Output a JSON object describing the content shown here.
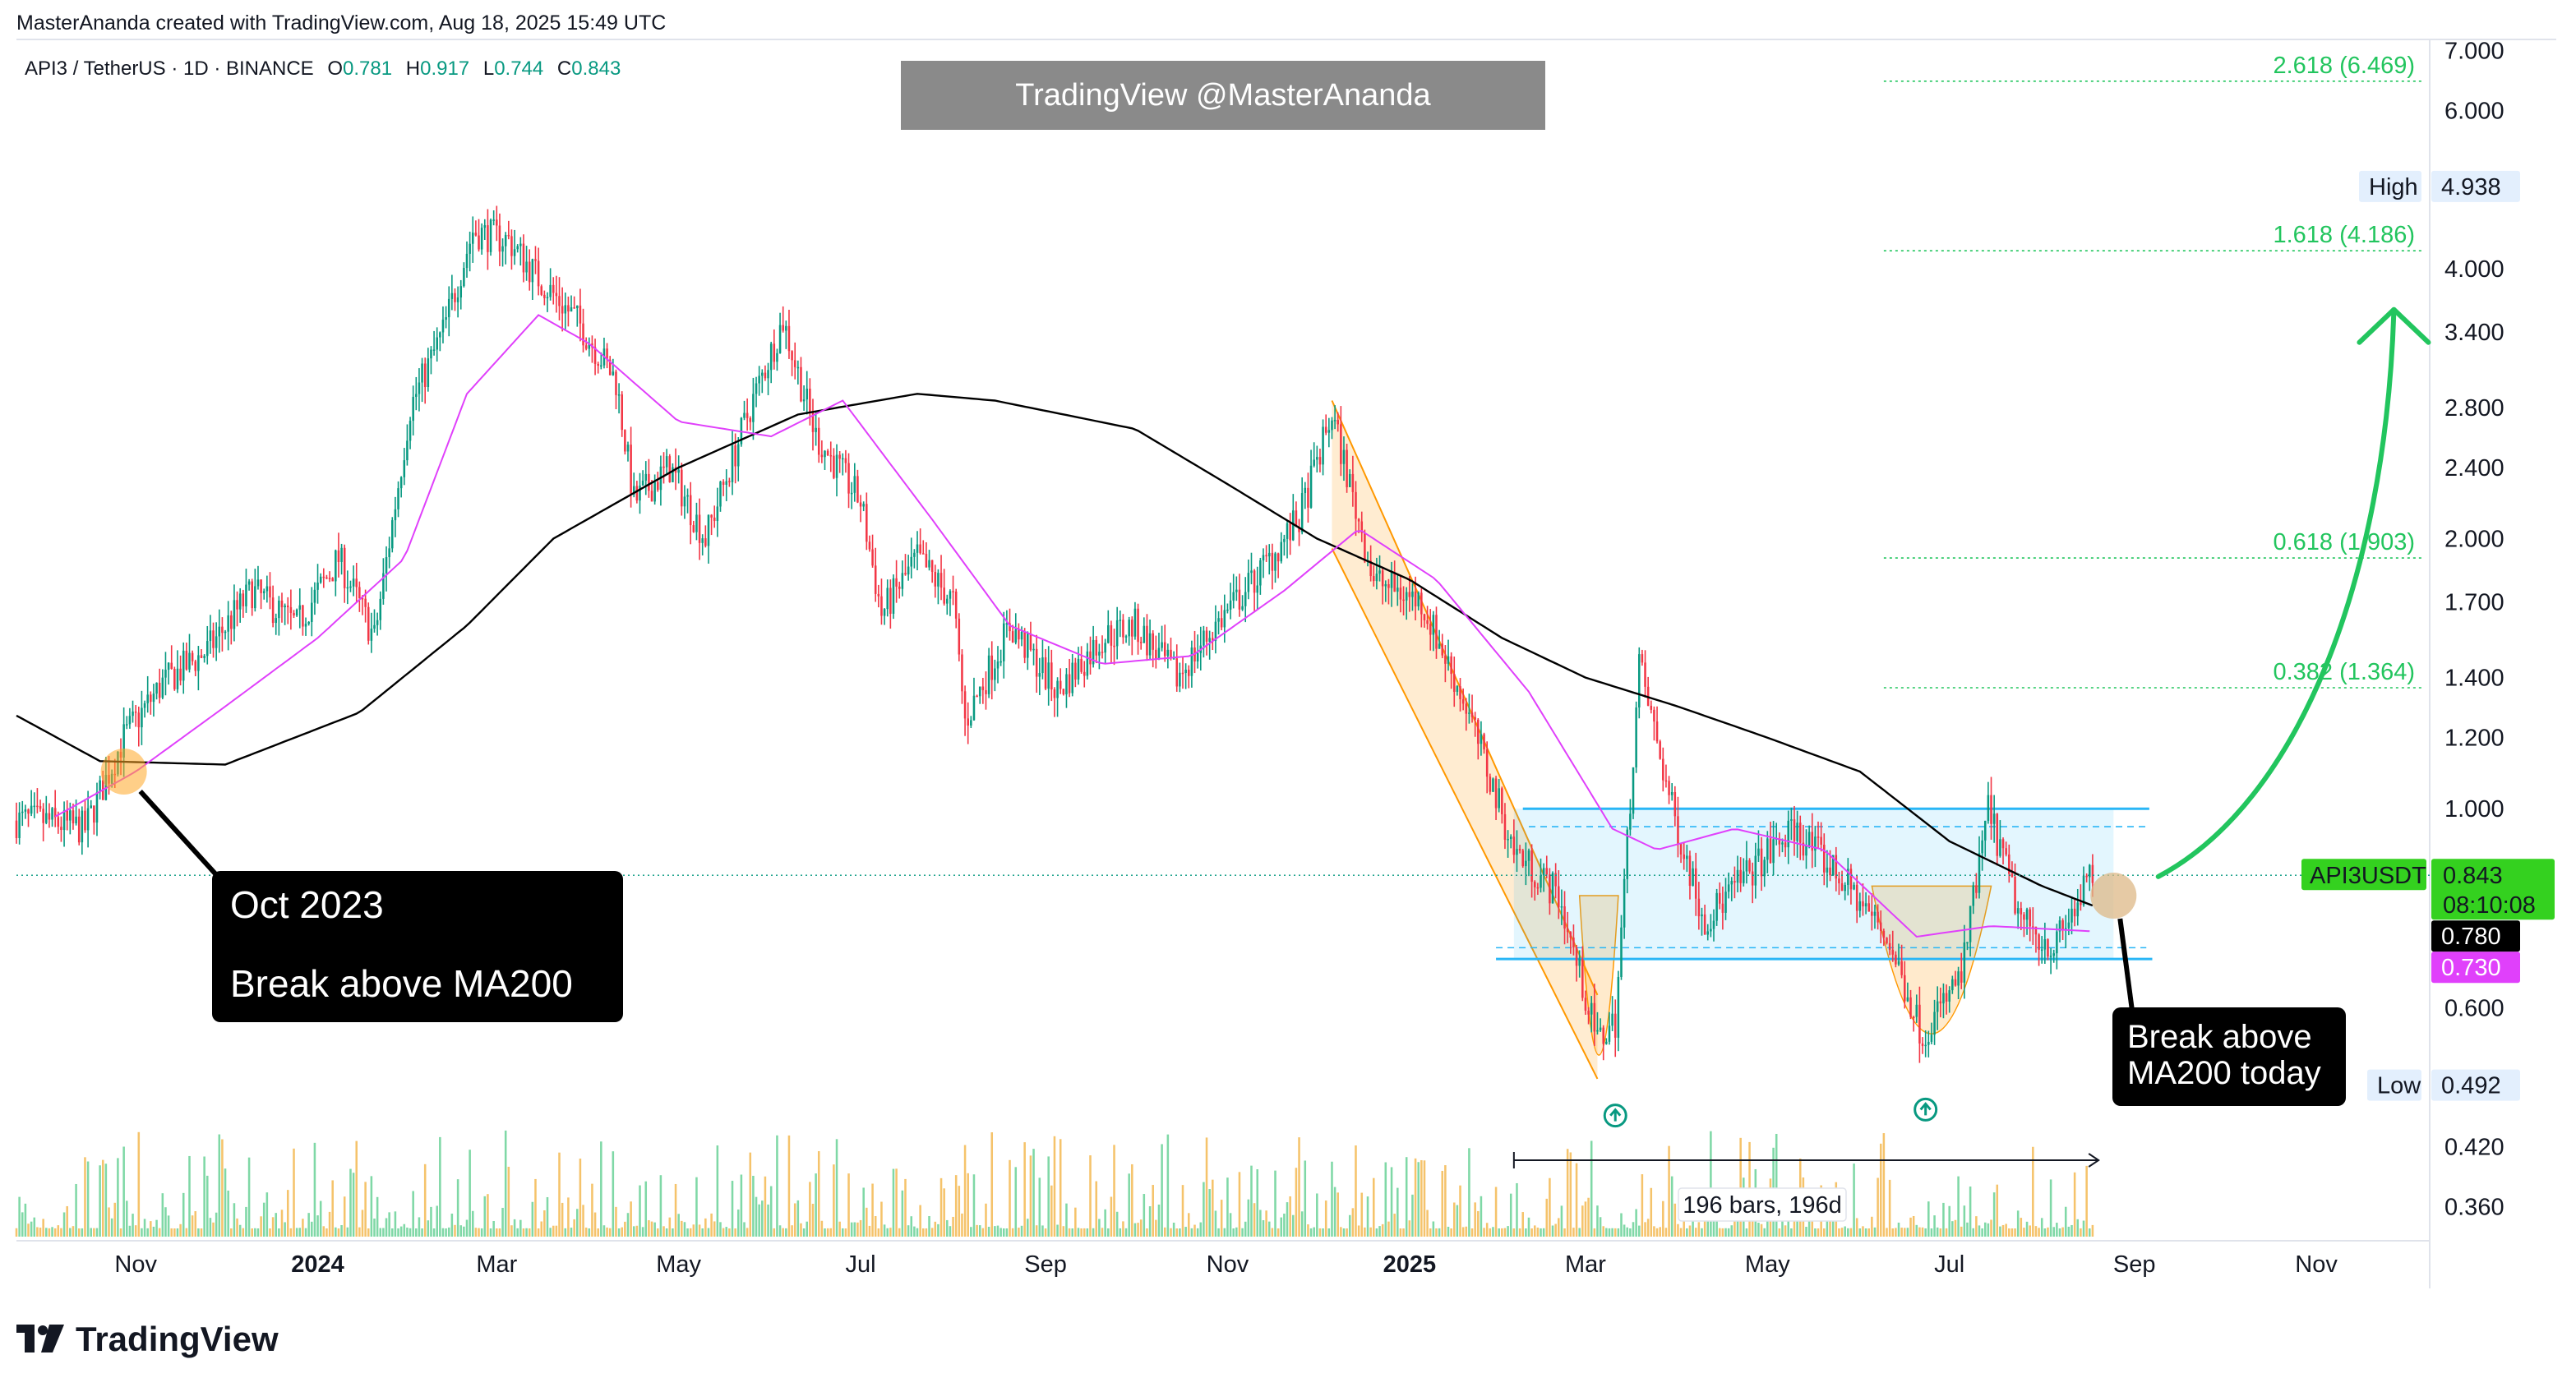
{
  "header": {
    "credit": "MasterAnanda created with TradingView.com, Aug 18, 2025 15:49 UTC"
  },
  "symbol": {
    "title": "API3 / TetherUS · 1D · BINANCE",
    "open_label": "O",
    "open": "0.781",
    "high_label": "H",
    "high": "0.917",
    "low_label": "L",
    "low": "0.744",
    "close_label": "C",
    "close": "0.843"
  },
  "watermark": "TradingView @MasterAnanda",
  "callouts": {
    "left_line1": "Oct 2023",
    "left_line2": "Break above MA200",
    "right_line1": "Break above",
    "right_line2": "MA200 today"
  },
  "price_axis": {
    "ticks": [
      "7.000",
      "6.000",
      "4.000",
      "3.400",
      "2.800",
      "2.400",
      "2.000",
      "1.700",
      "1.400",
      "1.200",
      "1.000",
      "0.600",
      "0.420",
      "0.360"
    ],
    "high_label": "High",
    "high_value": "4.938",
    "low_label": "Low",
    "low_value": "0.492",
    "symbol_tag": "API3USDT",
    "last_price": "0.843",
    "countdown": "08:10:08",
    "ma200_value": "0.780",
    "ma50_value": "0.730"
  },
  "time_axis": {
    "labels": [
      "Nov",
      "2024",
      "Mar",
      "May",
      "Jul",
      "Sep",
      "Nov",
      "2025",
      "Mar",
      "May",
      "Jul",
      "Sep",
      "Nov"
    ]
  },
  "fib_levels": [
    {
      "label": "2.618 (6.469)",
      "price": 6.469
    },
    {
      "label": "1.618 (4.186)",
      "price": 4.186
    },
    {
      "label": "0.618 (1.903)",
      "price": 1.903
    },
    {
      "label": "0.382 (1.364)",
      "price": 1.364
    }
  ],
  "range_tool": "196 bars, 196d",
  "branding": "TradingView",
  "colors": {
    "up": "#089981",
    "down": "#f23645",
    "ma200": "#000000",
    "ma50": "#e040fb",
    "fib": "#22c55e",
    "box": "#29b6f6",
    "arrow": "#22c55e",
    "channel": "#ff9800"
  },
  "chart_data": {
    "type": "candlestick",
    "title": "API3 / TetherUS · 1D · BINANCE",
    "scale": "log",
    "ylim": [
      0.33,
      7.2
    ],
    "xlim": [
      "2023-09-22",
      "2025-12-09"
    ],
    "series": [
      {
        "name": "API3 close (approx)",
        "points": [
          [
            "2023-10-01",
            0.97
          ],
          [
            "2023-10-15",
            0.95
          ],
          [
            "2023-10-28",
            1.2
          ],
          [
            "2023-11-10",
            1.38
          ],
          [
            "2023-11-25",
            1.5
          ],
          [
            "2023-12-10",
            1.75
          ],
          [
            "2023-12-25",
            1.6
          ],
          [
            "2024-01-08",
            1.9
          ],
          [
            "2024-01-20",
            1.55
          ],
          [
            "2024-02-01",
            2.8
          ],
          [
            "2024-02-12",
            3.4
          ],
          [
            "2024-02-22",
            4.4
          ],
          [
            "2024-03-05",
            4.3
          ],
          [
            "2024-03-15",
            3.9
          ],
          [
            "2024-03-28",
            3.5
          ],
          [
            "2024-04-10",
            3.0
          ],
          [
            "2024-04-16",
            2.2
          ],
          [
            "2024-04-28",
            2.4
          ],
          [
            "2024-05-10",
            2.0
          ],
          [
            "2024-05-25",
            2.8
          ],
          [
            "2024-06-05",
            3.5
          ],
          [
            "2024-06-16",
            2.6
          ],
          [
            "2024-07-01",
            2.2
          ],
          [
            "2024-07-08",
            1.65
          ],
          [
            "2024-07-20",
            1.9
          ],
          [
            "2024-08-01",
            1.7
          ],
          [
            "2024-08-05",
            1.25
          ],
          [
            "2024-08-20",
            1.6
          ],
          [
            "2024-09-05",
            1.35
          ],
          [
            "2024-09-20",
            1.55
          ],
          [
            "2024-10-01",
            1.6
          ],
          [
            "2024-10-15",
            1.4
          ],
          [
            "2024-10-28",
            1.6
          ],
          [
            "2024-11-10",
            1.8
          ],
          [
            "2024-11-25",
            2.1
          ],
          [
            "2024-12-06",
            2.75
          ],
          [
            "2024-12-20",
            1.8
          ],
          [
            "2025-01-05",
            1.7
          ],
          [
            "2025-01-20",
            1.3
          ],
          [
            "2025-02-05",
            0.9
          ],
          [
            "2025-02-20",
            0.8
          ],
          [
            "2025-03-05",
            0.55
          ],
          [
            "2025-03-11",
            0.58
          ],
          [
            "2025-03-19",
            1.45
          ],
          [
            "2025-03-30",
            1.0
          ],
          [
            "2025-04-10",
            0.75
          ],
          [
            "2025-04-25",
            0.85
          ],
          [
            "2025-05-10",
            0.95
          ],
          [
            "2025-05-28",
            0.82
          ],
          [
            "2025-06-10",
            0.72
          ],
          [
            "2025-06-22",
            0.56
          ],
          [
            "2025-07-05",
            0.65
          ],
          [
            "2025-07-14",
            1.0
          ],
          [
            "2025-07-25",
            0.75
          ],
          [
            "2025-08-05",
            0.7
          ],
          [
            "2025-08-18",
            0.843
          ]
        ]
      },
      {
        "name": "MA200",
        "points": [
          [
            "2023-09-22",
            1.27
          ],
          [
            "2023-10-20",
            1.13
          ],
          [
            "2023-12-01",
            1.12
          ],
          [
            "2024-01-15",
            1.28
          ],
          [
            "2024-02-20",
            1.6
          ],
          [
            "2024-03-20",
            2.0
          ],
          [
            "2024-05-01",
            2.4
          ],
          [
            "2024-06-10",
            2.75
          ],
          [
            "2024-07-20",
            2.9
          ],
          [
            "2024-08-15",
            2.85
          ],
          [
            "2024-10-01",
            2.65
          ],
          [
            "2024-11-01",
            2.3
          ],
          [
            "2024-12-01",
            2.0
          ],
          [
            "2025-01-01",
            1.8
          ],
          [
            "2025-02-01",
            1.55
          ],
          [
            "2025-03-01",
            1.4
          ],
          [
            "2025-04-01",
            1.3
          ],
          [
            "2025-05-01",
            1.2
          ],
          [
            "2025-06-01",
            1.1
          ],
          [
            "2025-07-01",
            0.92
          ],
          [
            "2025-08-01",
            0.82
          ],
          [
            "2025-08-18",
            0.78
          ]
        ]
      },
      {
        "name": "MA50",
        "points": [
          [
            "2023-10-05",
            0.98
          ],
          [
            "2023-11-01",
            1.1
          ],
          [
            "2023-12-01",
            1.3
          ],
          [
            "2024-01-01",
            1.55
          ],
          [
            "2024-01-30",
            1.9
          ],
          [
            "2024-02-20",
            2.9
          ],
          [
            "2024-03-15",
            3.55
          ],
          [
            "2024-04-01",
            3.3
          ],
          [
            "2024-05-01",
            2.7
          ],
          [
            "2024-06-01",
            2.6
          ],
          [
            "2024-06-25",
            2.85
          ],
          [
            "2024-07-25",
            2.1
          ],
          [
            "2024-08-20",
            1.6
          ],
          [
            "2024-09-20",
            1.45
          ],
          [
            "2024-10-20",
            1.48
          ],
          [
            "2024-11-20",
            1.75
          ],
          [
            "2024-12-15",
            2.05
          ],
          [
            "2025-01-10",
            1.8
          ],
          [
            "2025-02-10",
            1.35
          ],
          [
            "2025-03-10",
            0.95
          ],
          [
            "2025-03-25",
            0.9
          ],
          [
            "2025-04-20",
            0.95
          ],
          [
            "2025-05-20",
            0.9
          ],
          [
            "2025-06-20",
            0.72
          ],
          [
            "2025-07-15",
            0.74
          ],
          [
            "2025-08-18",
            0.73
          ]
        ]
      }
    ],
    "fib_levels": [
      6.469,
      4.186,
      1.903,
      1.364
    ],
    "range_box": {
      "from": "2025-02-05",
      "to": "2025-08-25",
      "top": 1.0,
      "bottom": 0.68
    },
    "projection_target": 3.6
  }
}
